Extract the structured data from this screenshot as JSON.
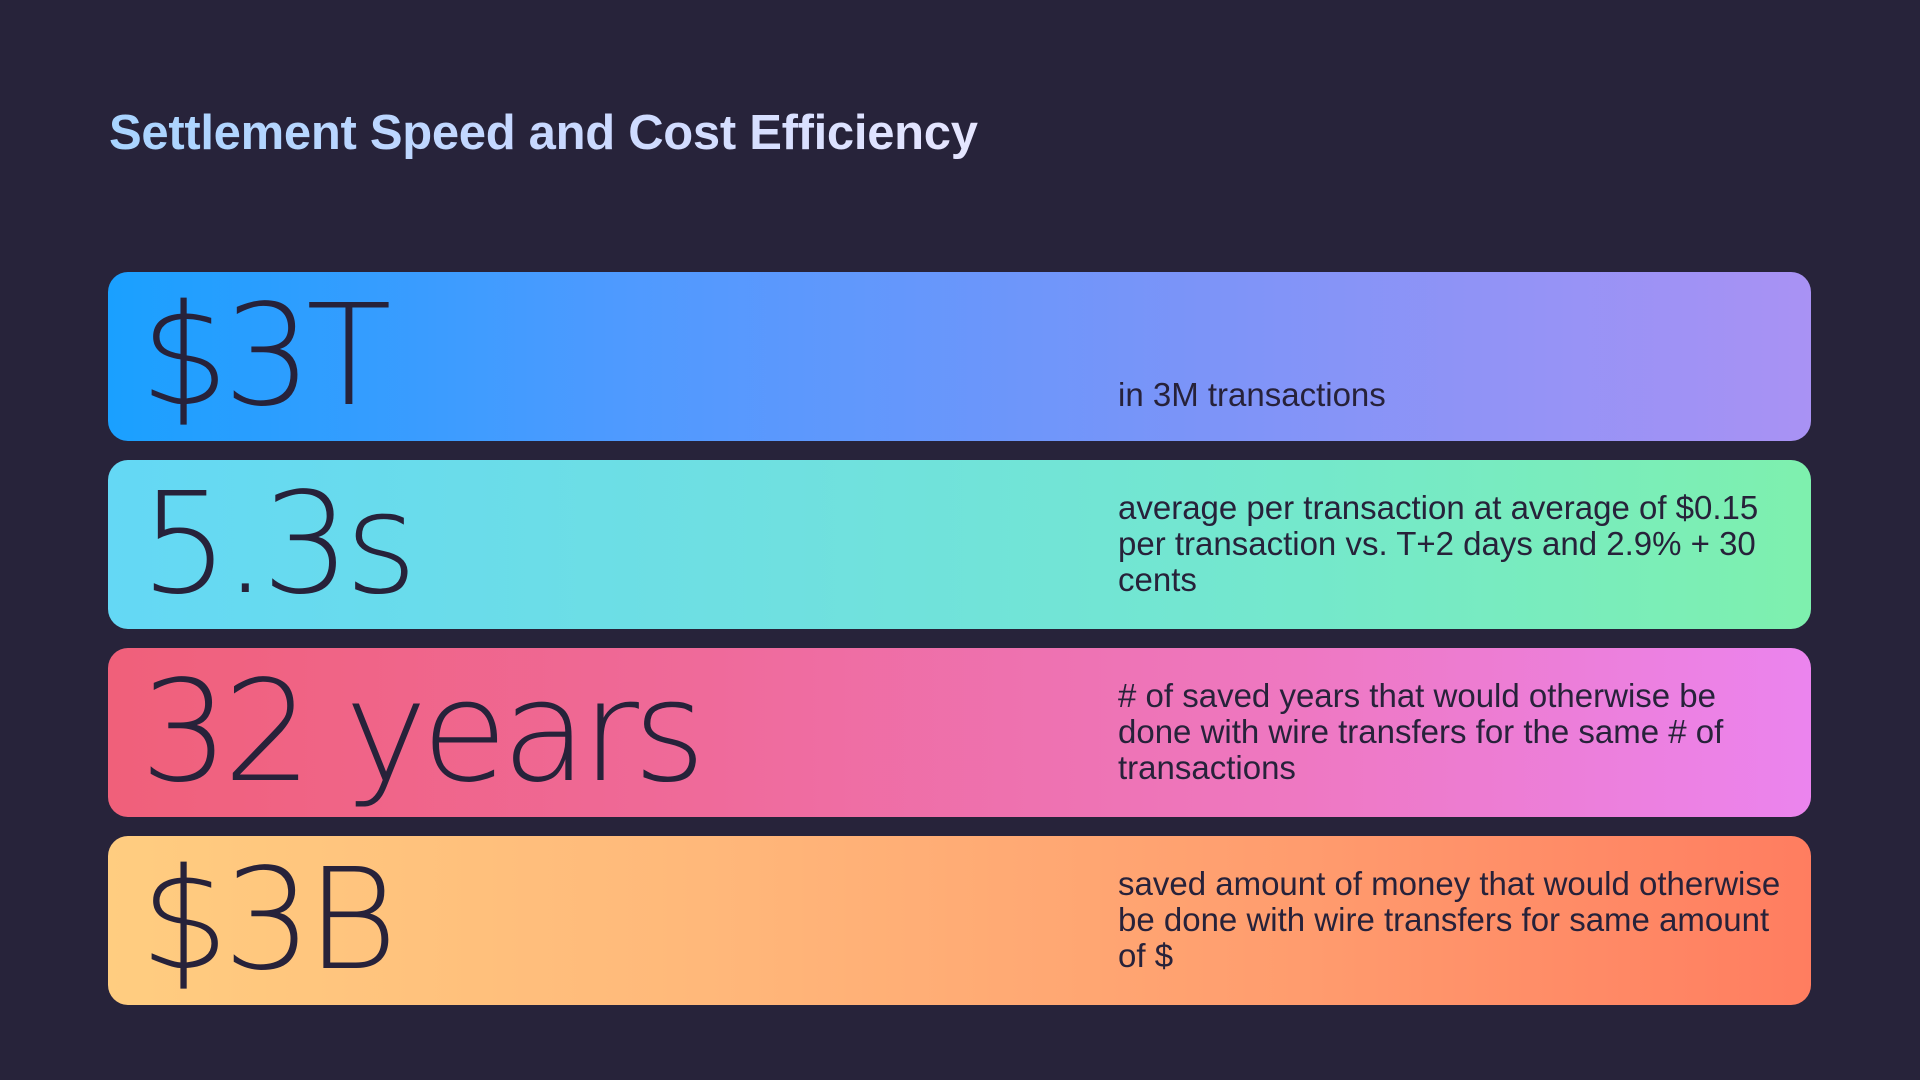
{
  "slide": {
    "title": "Settlement Speed and Cost Efficiency"
  },
  "stats": [
    {
      "value": "$3T",
      "description": "in 3M transactions"
    },
    {
      "value": "5.3s",
      "description": "average per transaction at average of $0.15 per transaction vs. T+2 days and 2.9% + 30 cents"
    },
    {
      "value": "32 years",
      "description": "# of saved years that would otherwise be done with wire transfers for the same # of transactions"
    },
    {
      "value": "$3B",
      "description": "saved amount of money that would otherwise be done with wire transfers for same amount of $"
    }
  ],
  "colors": {
    "background": "#27233a",
    "text_dark": "#27223a",
    "title_gradient": [
      "#a8d4ff",
      "#e6e6ff"
    ],
    "card_gradients": [
      [
        "#1aa0ff",
        "#a992f4"
      ],
      [
        "#64d8f5",
        "#7ef0ae"
      ],
      [
        "#f0607a",
        "#eb84ee"
      ],
      [
        "#ffcd80",
        "#ff7d60"
      ]
    ]
  }
}
